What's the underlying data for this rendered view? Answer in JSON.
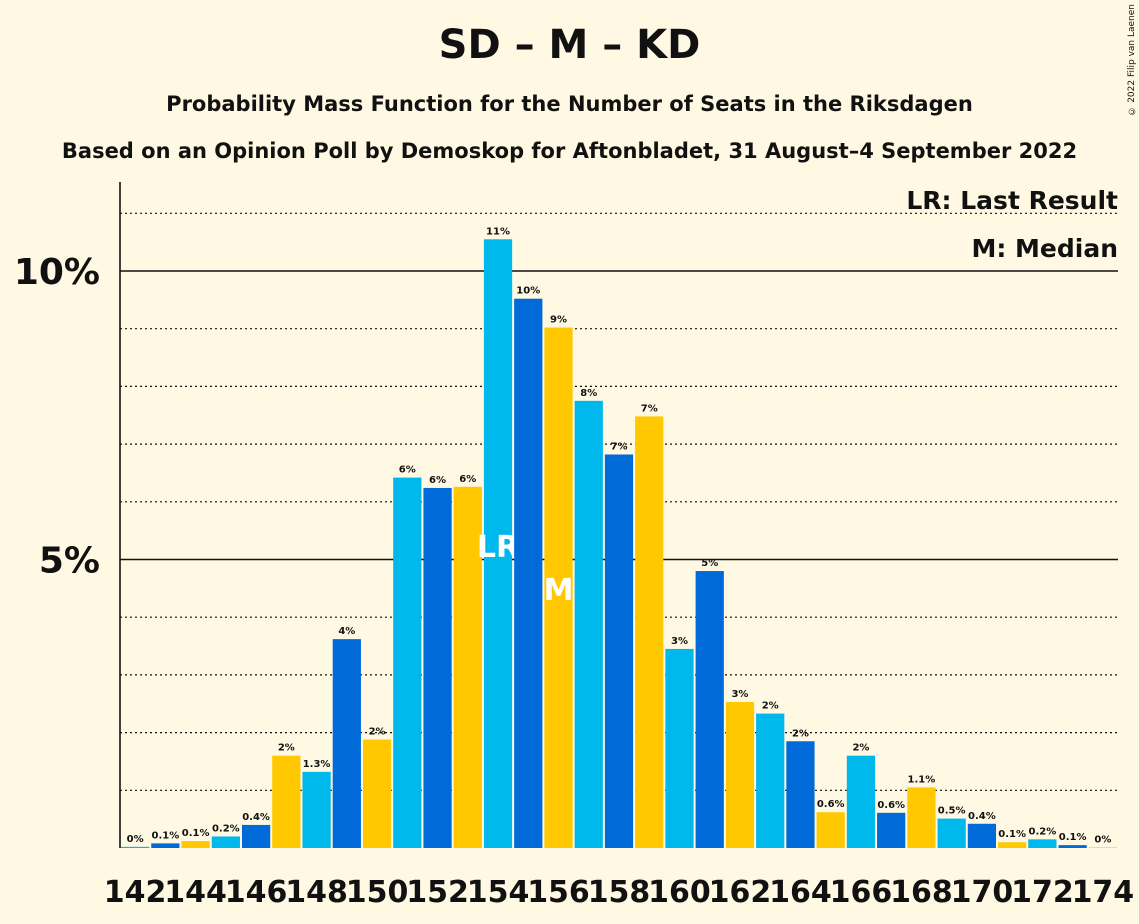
{
  "chart_data": {
    "type": "bar",
    "title": "SD – M – KD",
    "subtitle": "Probability Mass Function for the Number of Seats in the Riksdagen",
    "source_line": "Based on an Opinion Poll by Demoskop for Aftonbladet, 31 August–4 September 2022",
    "copyright": "© 2022 Filip van Laenen",
    "legend": [
      "LR: Last Result",
      "M: Median"
    ],
    "legend_position": "top-right",
    "y_ticks": [
      "5%",
      "10%"
    ],
    "y_tick_values": [
      5,
      10
    ],
    "ylim": [
      0,
      11.5
    ],
    "x_tick_labels": [
      "142",
      "144",
      "146",
      "148",
      "150",
      "152",
      "154",
      "156",
      "158",
      "160",
      "162",
      "164",
      "166",
      "168",
      "170",
      "172",
      "174"
    ],
    "seats": [
      142,
      143,
      144,
      145,
      146,
      147,
      148,
      149,
      150,
      151,
      152,
      153,
      154,
      155,
      156,
      157,
      158,
      159,
      160,
      161,
      162,
      163,
      164,
      165,
      166,
      167,
      168,
      169,
      170,
      171,
      172,
      173,
      174
    ],
    "values": [
      0.02,
      0.08,
      0.12,
      0.2,
      0.4,
      1.6,
      1.32,
      3.62,
      1.88,
      6.42,
      6.24,
      6.26,
      10.55,
      9.52,
      9.02,
      7.75,
      6.82,
      7.48,
      3.45,
      4.8,
      2.53,
      2.33,
      1.85,
      0.62,
      1.6,
      0.61,
      1.05,
      0.51,
      0.42,
      0.1,
      0.15,
      0.05,
      0.01
    ],
    "data_labels": [
      "0%",
      "0.1%",
      "0.1%",
      "0.2%",
      "0.4%",
      "2%",
      "1.3%",
      "4%",
      "2%",
      "6%",
      "6%",
      "6%",
      "11%",
      "10%",
      "9%",
      "8%",
      "7%",
      "7%",
      "3%",
      "5%",
      "3%",
      "2%",
      "2%",
      "0.6%",
      "2%",
      "0.6%",
      "1.1%",
      "0.5%",
      "0.4%",
      "0.1%",
      "0.2%",
      "0.1%",
      "0%"
    ],
    "bar_colors": [
      "#00b9ec",
      "#006ad8",
      "#ffc800"
    ],
    "last_result_seat": 154,
    "last_result_mark": "LR",
    "median_seat": 156,
    "median_mark": "M"
  }
}
